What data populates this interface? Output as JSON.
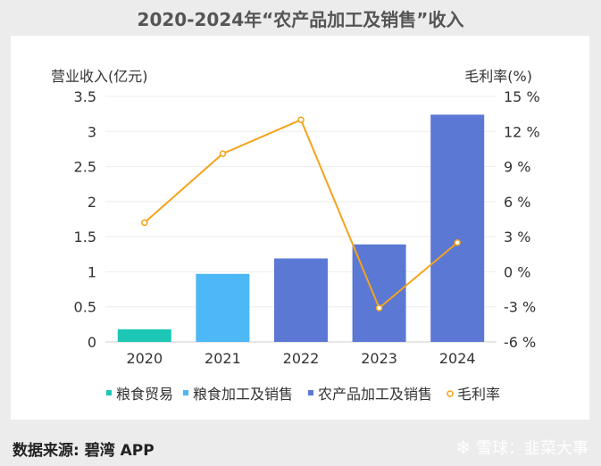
{
  "chart_data": {
    "type": "bar+line",
    "title": "2020-2024年“农产品加工及销售”收入",
    "ylabel_left": "营业收入(亿元)",
    "ylabel_right": "毛利率(%)",
    "categories": [
      "2020",
      "2021",
      "2022",
      "2023",
      "2024"
    ],
    "left_axis": {
      "min": 0,
      "max": 3.5,
      "ticks": [
        "0",
        "0.5",
        "1",
        "1.5",
        "2",
        "2.5",
        "3",
        "3.5"
      ]
    },
    "right_axis": {
      "min": -6,
      "max": 15,
      "ticks": [
        "-6 %",
        "-3 %",
        "0 %",
        "3 %",
        "6 %",
        "9 %",
        "12 %",
        "15 %"
      ]
    },
    "bars": [
      {
        "category": "2020",
        "value": 0.18,
        "series": "粮食贸易",
        "color": "#1cc7b5"
      },
      {
        "category": "2021",
        "value": 0.97,
        "series": "粮食加工及销售",
        "color": "#4cb8f5"
      },
      {
        "category": "2022",
        "value": 1.19,
        "series": "农产品加工及销售",
        "color": "#5b78d4"
      },
      {
        "category": "2023",
        "value": 1.39,
        "series": "农产品加工及销售",
        "color": "#5b78d4"
      },
      {
        "category": "2024",
        "value": 3.24,
        "series": "农产品加工及销售",
        "color": "#5b78d4"
      }
    ],
    "line": {
      "name": "毛利率",
      "color": "#f5a31a",
      "values": [
        4.2,
        10.1,
        13.0,
        -3.1,
        2.5
      ]
    },
    "legend": [
      {
        "label": "粮食贸易",
        "color": "#1cc7b5"
      },
      {
        "label": "粮食加工及销售",
        "color": "#4cb8f5"
      },
      {
        "label": "农产品加工及销售",
        "color": "#5b78d4"
      },
      {
        "label": "毛利率",
        "color": "#f5a31a"
      }
    ]
  },
  "footer": {
    "source": "数据来源: 碧湾 APP",
    "watermark": "雪球：韭菜大事",
    "logo_icon": "snowball-logo-icon"
  }
}
